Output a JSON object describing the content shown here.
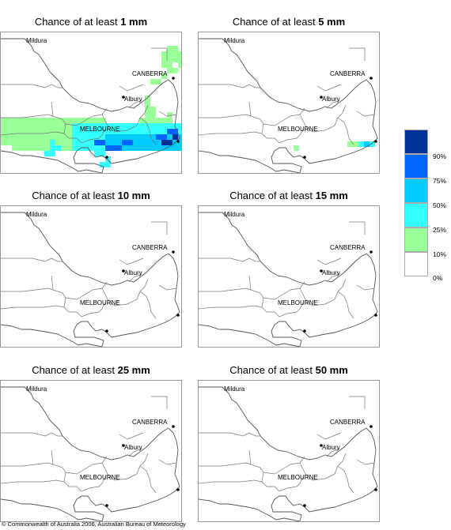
{
  "panels": [
    {
      "prefix": "Chance of at least ",
      "amount": "1 mm"
    },
    {
      "prefix": "Chance of at least ",
      "amount": "5 mm"
    },
    {
      "prefix": "Chance of at least ",
      "amount": "10 mm"
    },
    {
      "prefix": "Chance of at least ",
      "amount": "15 mm"
    },
    {
      "prefix": "Chance of at least ",
      "amount": "25 mm"
    },
    {
      "prefix": "Chance of at least ",
      "amount": "50 mm"
    }
  ],
  "places": {
    "mildura": "Mildura",
    "canberra": "CANBERRA",
    "albury": "Albury",
    "melbourne": "MELBOURNE"
  },
  "legend": {
    "ticks": [
      "90%",
      "75%",
      "50%",
      "25%",
      "10%",
      "0%"
    ],
    "colors": [
      "#00339a",
      "#0066ff",
      "#00ccff",
      "#33ffff",
      "#99ff99",
      "#ffffff"
    ]
  },
  "copyright": "© Commonwealth of Australia 2006, Australian Bureau of Meteorology"
}
